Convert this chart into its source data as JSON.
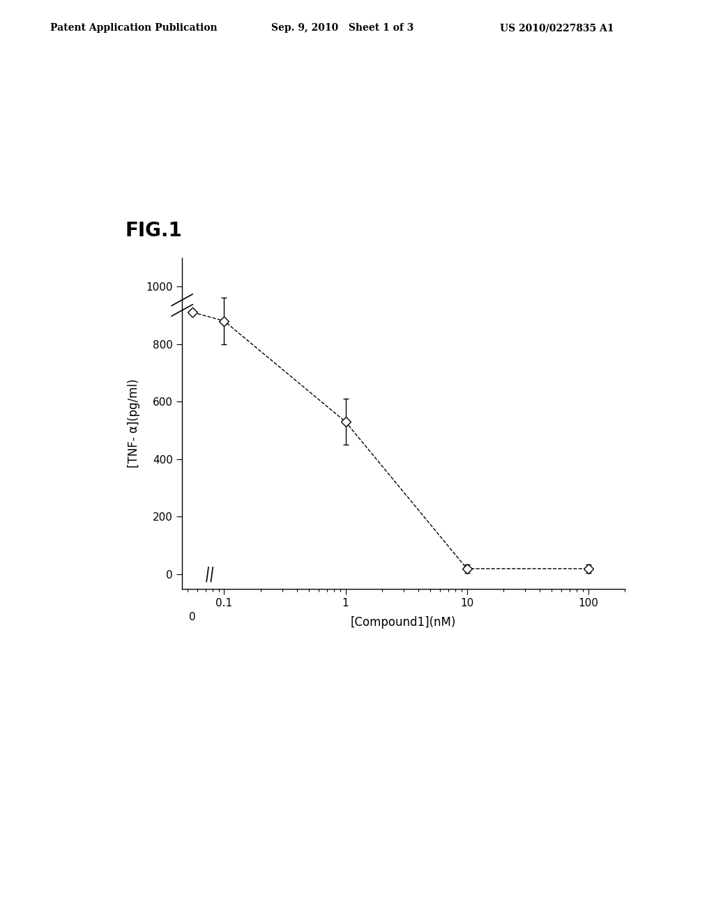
{
  "fig_label": "FIG.1",
  "header_left": "Patent Application Publication",
  "header_center": "Sep. 9, 2010   Sheet 1 of 3",
  "header_right": "US 2010/0227835 A1",
  "xlabel": "[Compound1](nM)",
  "ylabel": "[TNF- α](pg/ml)",
  "x_data_plot": [
    0.055,
    0.1,
    1,
    10,
    100
  ],
  "y_data": [
    910,
    880,
    530,
    20,
    20
  ],
  "y_err": [
    0,
    80,
    80,
    15,
    15
  ],
  "xlim_log": [
    0.045,
    200
  ],
  "ylim": [
    -50,
    1100
  ],
  "yticks": [
    0,
    200,
    400,
    600,
    800,
    1000
  ],
  "background_color": "#ffffff",
  "line_color": "#000000",
  "marker_color": "#ffffff",
  "marker_edge_color": "#000000",
  "header_fontsize": 10,
  "fig_label_fontsize": 20,
  "axis_fontsize": 12,
  "tick_fontsize": 11
}
